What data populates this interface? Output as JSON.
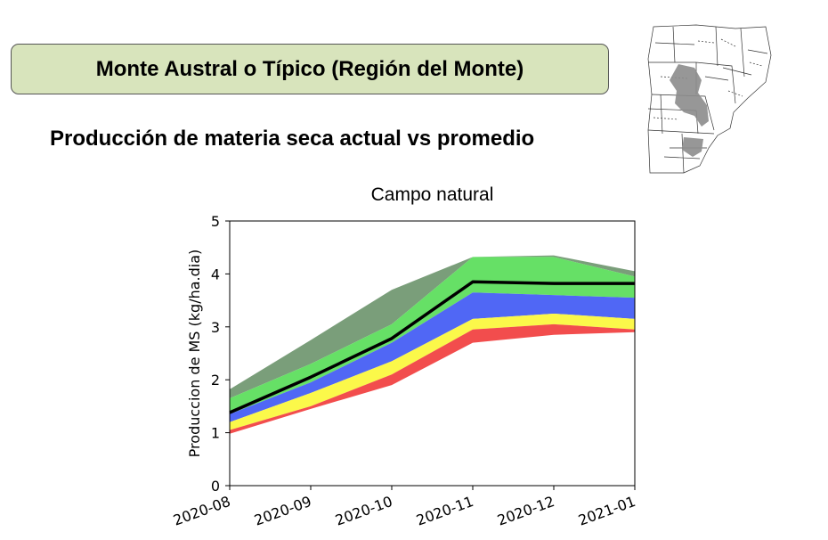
{
  "header": {
    "region_title": "Monte Austral o Típico (Región del Monte)",
    "subtitle": "Producción de materia seca actual vs promedio"
  },
  "map": {
    "icon": "argentina-region-map",
    "highlight_color": "#8c8c8c"
  },
  "chart_data": {
    "type": "area",
    "title": "Campo natural",
    "xlabel": "",
    "ylabel": "Produccion de MS (kg/ha.dia)",
    "categories": [
      "2020-08",
      "2020-09",
      "2020-10",
      "2020-11",
      "2020-12",
      "2021-01"
    ],
    "ylim": [
      0,
      5
    ],
    "yticks": [
      0,
      1,
      2,
      3,
      4,
      5
    ],
    "grid": false,
    "legend": "none",
    "bands": [
      {
        "color": "#7a9e7a",
        "lower": [
          1.65,
          2.3,
          3.05,
          4.32,
          4.32,
          3.95
        ],
        "upper": [
          1.82,
          2.75,
          3.7,
          4.32,
          4.35,
          4.05
        ]
      },
      {
        "color": "#66e066",
        "lower": [
          1.35,
          1.95,
          2.7,
          3.65,
          3.6,
          3.55
        ],
        "upper": [
          1.65,
          2.3,
          3.05,
          4.32,
          4.32,
          3.95
        ]
      },
      {
        "color": "#5067f5",
        "lower": [
          1.2,
          1.75,
          2.35,
          3.15,
          3.25,
          3.15
        ],
        "upper": [
          1.35,
          1.95,
          2.7,
          3.65,
          3.6,
          3.55
        ]
      },
      {
        "color": "#fbf84a",
        "lower": [
          1.05,
          1.5,
          2.1,
          2.95,
          3.05,
          2.95
        ],
        "upper": [
          1.2,
          1.75,
          2.35,
          3.15,
          3.25,
          3.15
        ]
      },
      {
        "color": "#f24d4d",
        "lower": [
          0.98,
          1.45,
          1.9,
          2.7,
          2.85,
          2.9
        ],
        "upper": [
          1.05,
          1.5,
          2.1,
          2.95,
          3.05,
          2.95
        ]
      }
    ],
    "series": [
      {
        "color": "#000000",
        "values": [
          1.38,
          2.05,
          2.78,
          3.85,
          3.82,
          3.82
        ]
      }
    ]
  }
}
